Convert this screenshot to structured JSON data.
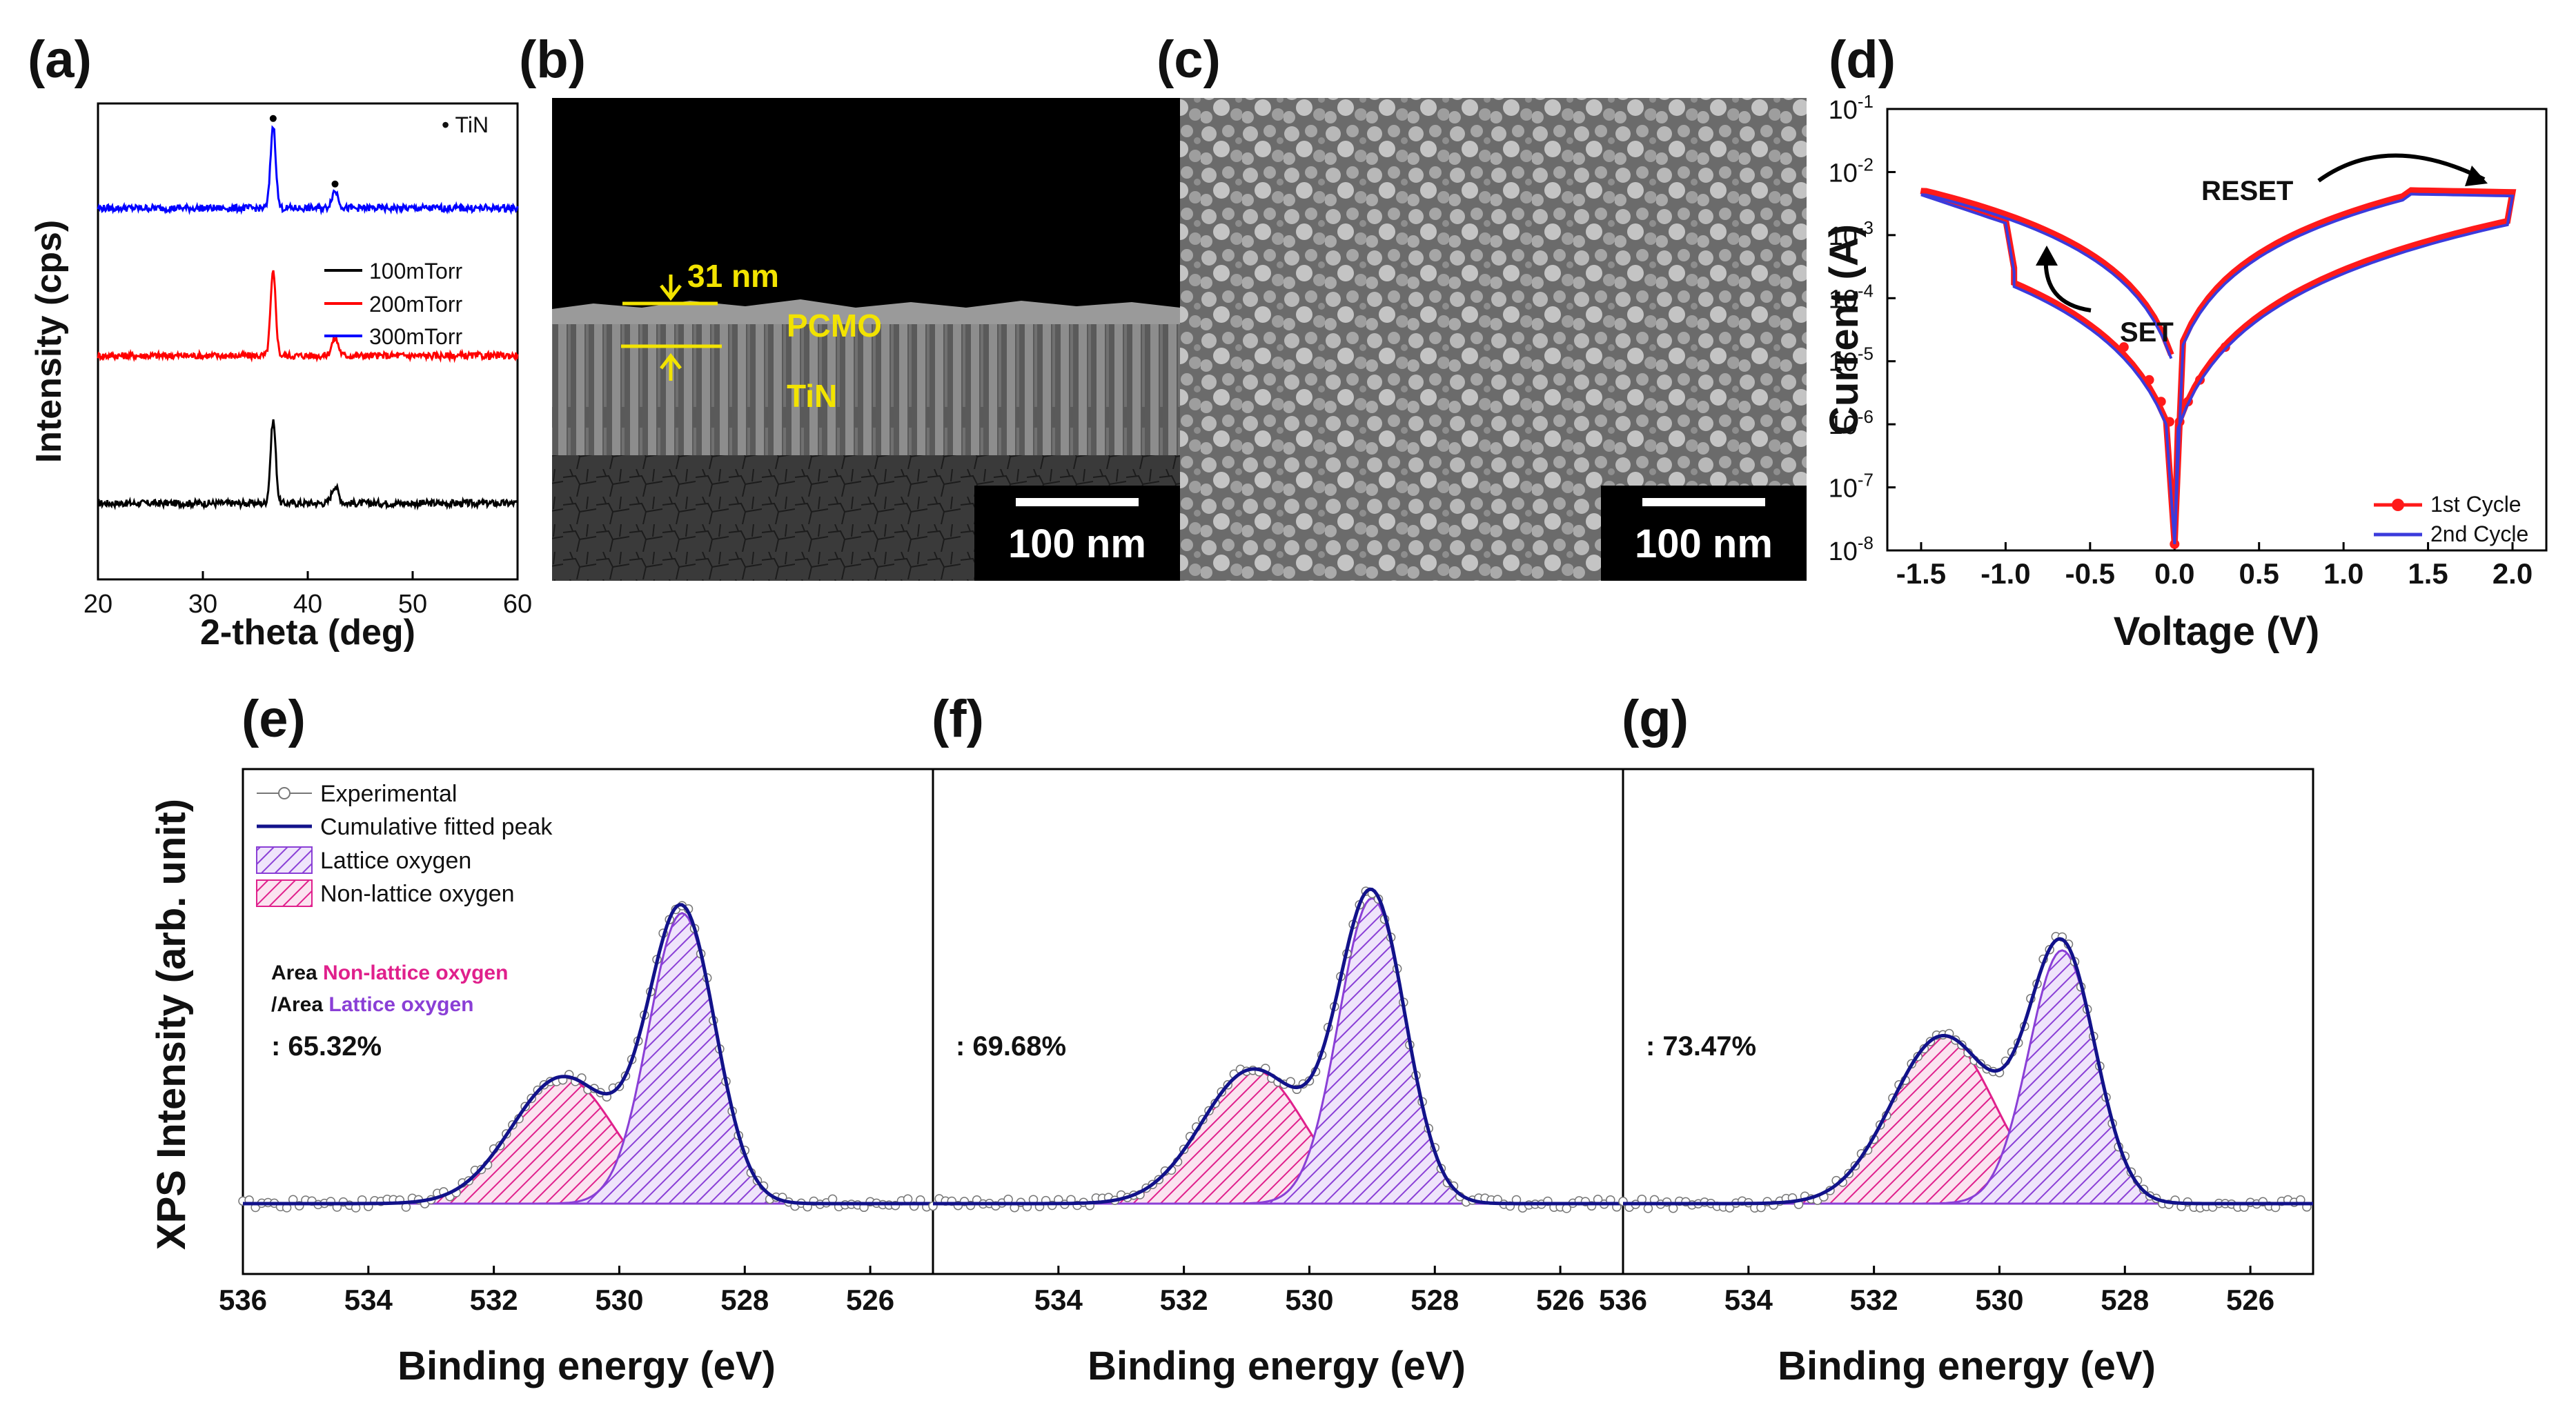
{
  "panel_labels": {
    "a": "(a)",
    "b": "(b)",
    "c": "(c)",
    "d": "(d)",
    "e": "(e)",
    "f": "(f)",
    "g": "(g)"
  },
  "chart_data": [
    {
      "id": "a",
      "type": "line",
      "title": "",
      "xlabel": "2-theta (deg)",
      "ylabel": "Intensity (cps)",
      "xlim": [
        20,
        60
      ],
      "xticks": [
        "20",
        "30",
        "40",
        "50",
        "60"
      ],
      "marker_label": "• TiN",
      "peaks_deg": [
        36.7,
        42.6
      ],
      "series": [
        {
          "name": "100mTorr",
          "color": "#000000",
          "baseline": 0.16
        },
        {
          "name": "200mTorr",
          "color": "#ff0000",
          "baseline": 0.47
        },
        {
          "name": "300mTorr",
          "color": "#0000ff",
          "baseline": 0.78
        }
      ]
    },
    {
      "id": "b",
      "type": "image",
      "annotations": {
        "thickness": "31 nm",
        "layer_top": "PCMO",
        "layer_bottom": "TiN"
      },
      "scale_bar": "100 nm"
    },
    {
      "id": "c",
      "type": "image",
      "scale_bar": "100 nm"
    },
    {
      "id": "d",
      "type": "line",
      "xlabel": "Voltage (V)",
      "ylabel": "Current (A)",
      "xlim": [
        -1.7,
        2.2
      ],
      "xticks": [
        "-1.5",
        "-1.0",
        "-0.5",
        "0.0",
        "0.5",
        "1.0",
        "1.5",
        "2.0"
      ],
      "yscale": "log",
      "ylim_exp": [
        -8,
        -1
      ],
      "yticks_exp": [
        "-1",
        "-2",
        "-3",
        "-4",
        "-5",
        "-6",
        "-7",
        "-8"
      ],
      "annotations": [
        "RESET",
        "SET"
      ],
      "legend": [
        "1st Cycle",
        "2nd Cycle"
      ],
      "series": [
        {
          "name": "1st Cycle",
          "color": "#ff1a1a",
          "marker": "circle"
        },
        {
          "name": "2nd Cycle",
          "color": "#3b3bdc",
          "marker": "none"
        }
      ],
      "key_points": {
        "peak_current_at_-1.5V": 0.005,
        "set_jump_at_V": -0.95,
        "peak_current_at_2.0V": 0.0045,
        "min_current_at_0V": 1e-08
      }
    },
    {
      "id": "e",
      "type": "line",
      "xlabel": "Binding energy (eV)",
      "xlim": [
        536,
        525
      ],
      "xticks": [
        "536",
        "534",
        "532",
        "530",
        "528",
        "526"
      ],
      "ratio_text": ": 65.32%",
      "fit": {
        "lattice_center": 529.0,
        "lattice_amp": 0.78,
        "nonlattice_center": 530.9,
        "nonlattice_amp": 0.34
      }
    },
    {
      "id": "f",
      "type": "line",
      "xlabel": "Binding energy (eV)",
      "xlim": [
        536,
        525
      ],
      "xticks": [
        "534",
        "532",
        "530",
        "528",
        "526"
      ],
      "ratio_text": ": 69.68%",
      "fit": {
        "lattice_center": 529.0,
        "lattice_amp": 0.82,
        "nonlattice_center": 530.9,
        "nonlattice_amp": 0.36
      }
    },
    {
      "id": "g",
      "type": "line",
      "xlabel": "Binding energy (eV)",
      "xlim": [
        536,
        525
      ],
      "xticks": [
        "536",
        "534",
        "532",
        "530",
        "528",
        "526"
      ],
      "ratio_text": ": 73.47%",
      "fit": {
        "lattice_center": 529.0,
        "lattice_amp": 0.68,
        "nonlattice_center": 530.9,
        "nonlattice_amp": 0.45
      }
    }
  ],
  "xps_shared": {
    "ylabel": "XPS Intensity (arb. unit)",
    "legend": [
      "Experimental",
      "Cumulative fitted peak",
      "Lattice oxygen",
      "Non-lattice oxygen"
    ],
    "area_line1_prefix": "Area ",
    "area_line1_colored": "Non-lattice oxygen",
    "area_line2_prefix": "/Area ",
    "area_line2_colored": "Lattice oxygen",
    "colors": {
      "lattice": "#8a3fd6",
      "nonlattice": "#e0208c",
      "fit": "#12128a",
      "exp": "#777777"
    }
  }
}
